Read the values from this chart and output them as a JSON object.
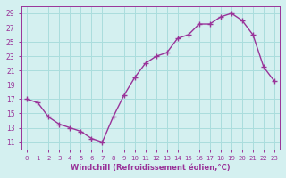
{
  "x": [
    0,
    1,
    2,
    3,
    4,
    5,
    6,
    7,
    8,
    9,
    10,
    11,
    12,
    13,
    14,
    15,
    16,
    17,
    18,
    19,
    20,
    21,
    22,
    23
  ],
  "y": [
    17,
    16.5,
    14.5,
    13.5,
    13,
    12.5,
    11.5,
    11,
    14.5,
    17.5,
    20,
    22,
    23,
    23.5,
    25.5,
    26,
    27.5,
    27.5,
    28.5,
    29,
    28,
    26,
    21.5,
    19.5
  ],
  "line_color": "#993399",
  "marker": "+",
  "bg_color": "#d4f0f0",
  "grid_color": "#aadddd",
  "tick_color": "#993399",
  "label_color": "#993399",
  "xlabel": "Windchill (Refroidissement éolien,°C)",
  "ylim": [
    10,
    30
  ],
  "yticks": [
    11,
    13,
    15,
    17,
    19,
    21,
    23,
    25,
    27,
    29
  ],
  "xticks": [
    0,
    1,
    2,
    3,
    4,
    5,
    6,
    7,
    8,
    9,
    10,
    11,
    12,
    13,
    14,
    15,
    16,
    17,
    18,
    19,
    20,
    21,
    22,
    23
  ]
}
